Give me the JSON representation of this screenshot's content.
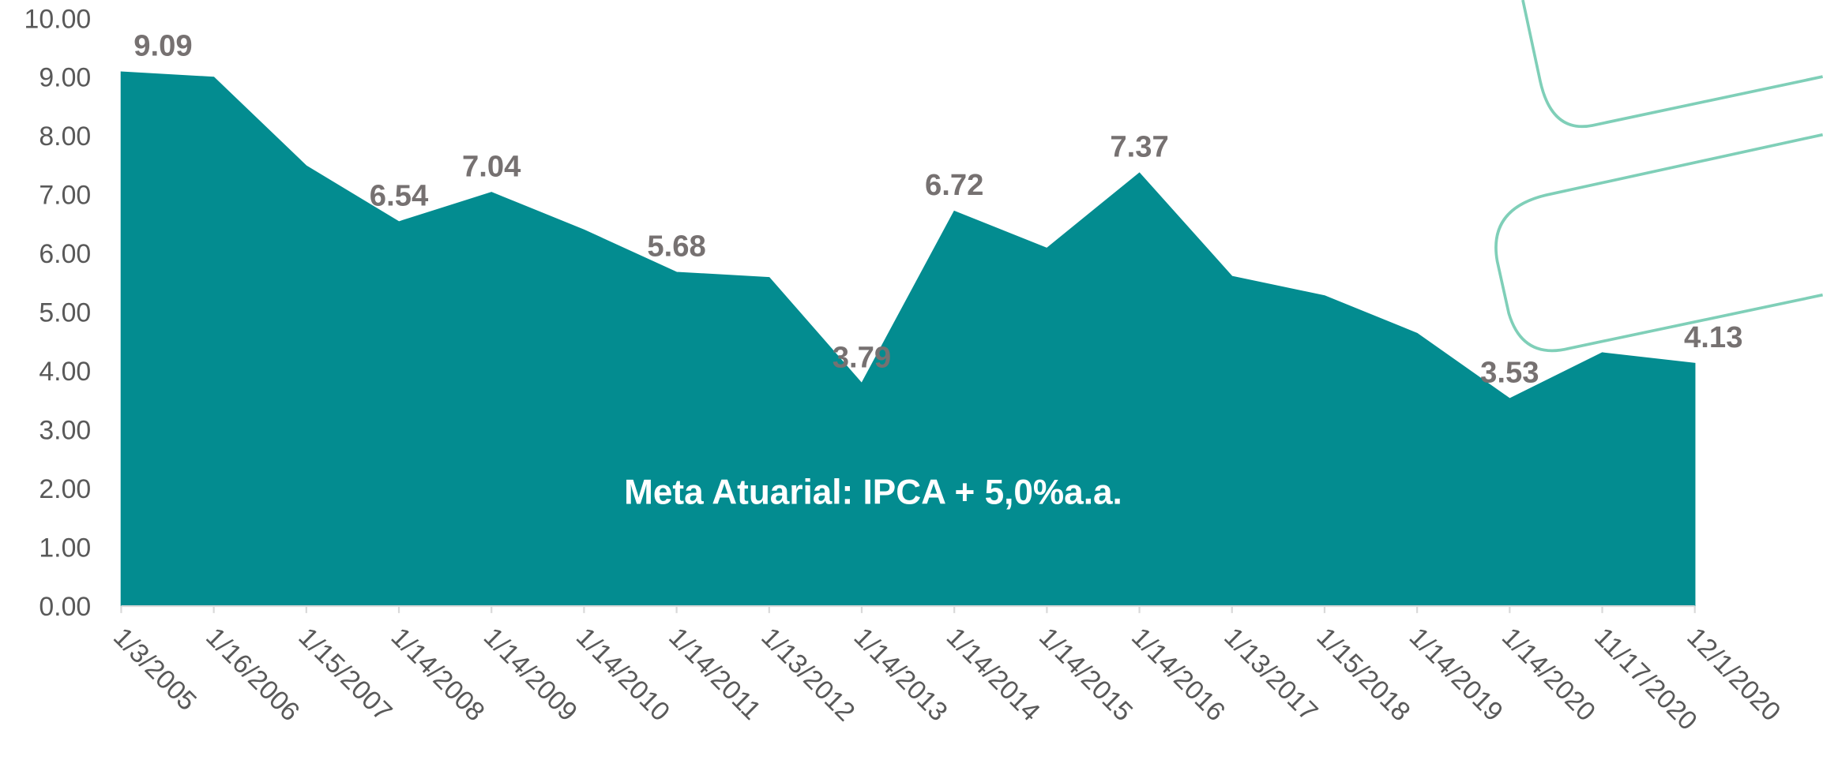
{
  "chart_data": {
    "type": "area",
    "annotation": "Meta Atuarial: IPCA + 5,0%a.a.",
    "categories": [
      "1/3/2005",
      "1/16/2006",
      "1/15/2007",
      "1/14/2008",
      "1/14/2009",
      "1/14/2010",
      "1/14/2011",
      "1/13/2012",
      "1/14/2013",
      "1/14/2014",
      "1/14/2015",
      "1/14/2016",
      "1/13/2017",
      "1/15/2018",
      "1/14/2019",
      "1/14/2020",
      "11/17/2020",
      "12/1/2020"
    ],
    "values": [
      9.09,
      9.0,
      7.49,
      6.54,
      7.04,
      6.4,
      5.68,
      5.59,
      3.79,
      6.72,
      6.09,
      7.37,
      5.61,
      5.28,
      4.64,
      3.53,
      4.31,
      4.13
    ],
    "value_labels": [
      "9.09",
      null,
      null,
      "6.54",
      "7.04",
      null,
      "5.68",
      null,
      "3.79",
      "6.72",
      null,
      "7.37",
      null,
      null,
      null,
      "3.53",
      null,
      "4.13"
    ],
    "color": "#038c90",
    "ylim": [
      0,
      10
    ],
    "yticks": [
      {
        "value": 0,
        "label": "0.00"
      },
      {
        "value": 1,
        "label": "1.00"
      },
      {
        "value": 2,
        "label": "2.00"
      },
      {
        "value": 3,
        "label": "3.00"
      },
      {
        "value": 4,
        "label": "4.00"
      },
      {
        "value": 5,
        "label": "5.00"
      },
      {
        "value": 6,
        "label": "6.00"
      },
      {
        "value": 7,
        "label": "7.00"
      },
      {
        "value": 8,
        "label": "8.00"
      },
      {
        "value": 9,
        "label": "9.00"
      },
      {
        "value": 10,
        "label": "10.00"
      }
    ]
  }
}
